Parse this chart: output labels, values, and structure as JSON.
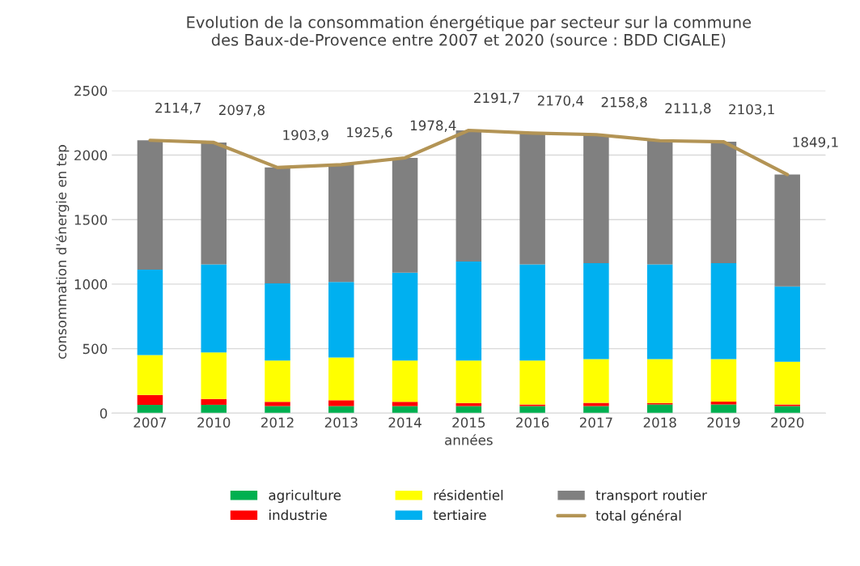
{
  "chart_data": {
    "type": "bar",
    "title": "Evolution de la consommation énergétique par secteur sur la commune\ndes Baux-de-Provence entre 2007 et 2020 (source : BDD CIGALE)",
    "xlabel": "années",
    "ylabel": "consommation d'énergie en tep",
    "stacked": true,
    "categories": [
      "2007",
      "2010",
      "2012",
      "2013",
      "2014",
      "2015",
      "2016",
      "2017",
      "2018",
      "2019",
      "2020"
    ],
    "series": [
      {
        "name": "agriculture",
        "color": "#00b050",
        "values": [
          65,
          65,
          55,
          55,
          55,
          55,
          55,
          55,
          67,
          67,
          55
        ]
      },
      {
        "name": "industrie",
        "color": "#ff0000",
        "values": [
          76,
          45,
          33,
          45,
          33,
          23,
          12,
          25,
          11,
          23,
          12
        ]
      },
      {
        "name": "résidentiel",
        "color": "#ffff00",
        "values": [
          310,
          361,
          320,
          331,
          320,
          330,
          341,
          339,
          341,
          329,
          331
        ]
      },
      {
        "name": "tertiaire",
        "color": "#00b0f0",
        "values": [
          661,
          682,
          598,
          585,
          681,
          767,
          745,
          744,
          734,
          744,
          584
        ]
      },
      {
        "name": "transport routier",
        "color": "#808080",
        "values": [
          1003,
          945,
          898,
          910,
          889,
          1017,
          1017,
          996,
          959,
          940,
          867
        ]
      },
      {
        "name": "total général",
        "type": "line",
        "color": "#b39455",
        "values": [
          2114.7,
          2097.8,
          1903.9,
          1925.6,
          1978.4,
          2191.7,
          2170.4,
          2158.8,
          2111.8,
          2103.1,
          1849.1
        ],
        "value_labels": [
          "2114,7",
          "2097,8",
          "1903,9",
          "1925,6",
          "1978,4",
          "2191,7",
          "2170,4",
          "2158,8",
          "2111,8",
          "2103,1",
          "1849,1"
        ]
      }
    ],
    "ylim": [
      0,
      2500
    ],
    "yticks": [
      0,
      500,
      1000,
      1500,
      2000,
      2500
    ],
    "grid": "y",
    "legend": "bottom",
    "marker": "none",
    "line_style": "solid"
  }
}
